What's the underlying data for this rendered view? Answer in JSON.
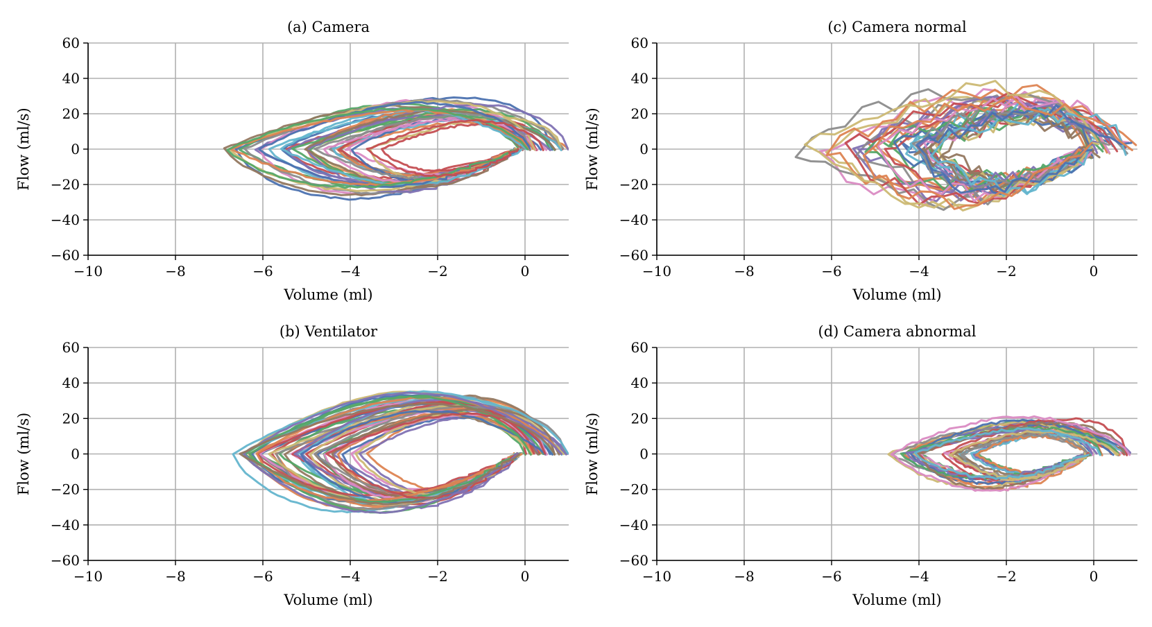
{
  "chart_data": [
    {
      "id": "a",
      "type": "line",
      "title": "(a) Camera",
      "xlabel": "Volume (ml)",
      "ylabel": "Flow (ml/s)",
      "xlim": [
        -10,
        1
      ],
      "ylim": [
        -60,
        60
      ],
      "xticks": [
        -10,
        -8,
        -6,
        -4,
        -2,
        0
      ],
      "yticks": [
        -60,
        -40,
        -20,
        0,
        20,
        40,
        60
      ],
      "grid": true,
      "loop_family": {
        "count": 34,
        "min_volume_range": [
          -6.9,
          -3.2
        ],
        "max_volume": [
          -0.3,
          1.0
        ],
        "peak_inflow": [
          4,
          29
        ],
        "peak_outflow": [
          -3,
          -28
        ],
        "noise": 0.6
      }
    },
    {
      "id": "b",
      "type": "line",
      "title": "(b) Ventilator",
      "xlabel": "Volume (ml)",
      "ylabel": "Flow (ml/s)",
      "xlim": [
        -10,
        1
      ],
      "ylim": [
        -60,
        60
      ],
      "xticks": [
        -10,
        -8,
        -6,
        -4,
        -2,
        0
      ],
      "yticks": [
        -60,
        -40,
        -20,
        0,
        20,
        40,
        60
      ],
      "grid": true,
      "loop_family": {
        "count": 46,
        "min_volume_range": [
          -6.7,
          -3.6
        ],
        "max_volume": [
          0.0,
          1.0
        ],
        "peak_inflow": [
          8,
          35
        ],
        "peak_outflow": [
          -8,
          -33
        ],
        "noise": 0.4
      }
    },
    {
      "id": "c",
      "type": "line",
      "title": "(c) Camera normal",
      "xlabel": "Volume (ml)",
      "ylabel": "Flow (ml/s)",
      "xlim": [
        -10,
        1
      ],
      "ylim": [
        -60,
        60
      ],
      "xticks": [
        -10,
        -8,
        -6,
        -4,
        -2,
        0
      ],
      "yticks": [
        -60,
        -40,
        -20,
        0,
        20,
        40,
        60
      ],
      "grid": true,
      "loop_family": {
        "count": 32,
        "min_volume_range": [
          -7.0,
          -3.4
        ],
        "max_volume": [
          -0.1,
          1.0
        ],
        "peak_inflow": [
          5,
          36
        ],
        "peak_outflow": [
          -4,
          -34
        ],
        "noise": 3.2
      }
    },
    {
      "id": "d",
      "type": "line",
      "title": "(d) Camera abnormal",
      "xlabel": "Volume (ml)",
      "ylabel": "Flow (ml/s)",
      "xlim": [
        -10,
        1
      ],
      "ylim": [
        -60,
        60
      ],
      "xticks": [
        -10,
        -8,
        -6,
        -4,
        -2,
        0
      ],
      "yticks": [
        -60,
        -40,
        -20,
        0,
        20,
        40,
        60
      ],
      "grid": true,
      "loop_family": {
        "count": 30,
        "min_volume_range": [
          -5.0,
          -2.6
        ],
        "max_volume": [
          -0.2,
          0.9
        ],
        "peak_inflow": [
          3,
          21
        ],
        "peak_outflow": [
          -3,
          -21
        ],
        "noise": 0.8
      }
    }
  ],
  "palette": [
    "#4c72b0",
    "#dd8452",
    "#55a868",
    "#c44e52",
    "#8172b3",
    "#937860",
    "#da8bc3",
    "#8c8c8c",
    "#ccb974",
    "#64b5cd"
  ]
}
